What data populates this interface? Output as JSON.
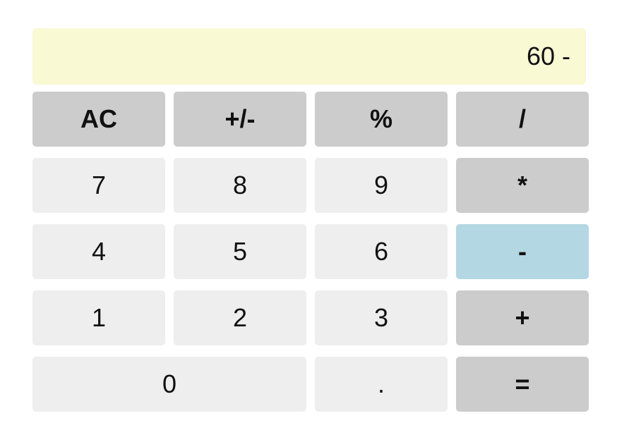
{
  "display": {
    "value": "60 -"
  },
  "keys": {
    "ac": "AC",
    "sign": "+/-",
    "percent": "%",
    "divide": "/",
    "seven": "7",
    "eight": "8",
    "nine": "9",
    "multiply": "*",
    "four": "4",
    "five": "5",
    "six": "6",
    "subtract": "-",
    "one": "1",
    "two": "2",
    "three": "3",
    "add": "+",
    "zero": "0",
    "decimal": ".",
    "equals": "="
  },
  "colors": {
    "display_bg": "#f9f9d4",
    "number_key_bg": "#eeeeee",
    "function_key_bg": "#cccccc",
    "active_operator_bg": "#b3d7e3"
  },
  "state": {
    "active_operator": "subtract"
  }
}
